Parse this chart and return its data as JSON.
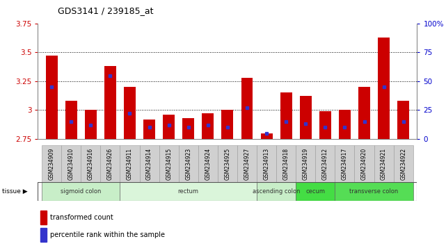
{
  "title": "GDS3141 / 239185_at",
  "samples": [
    "GSM234909",
    "GSM234910",
    "GSM234916",
    "GSM234926",
    "GSM234911",
    "GSM234914",
    "GSM234915",
    "GSM234923",
    "GSM234924",
    "GSM234925",
    "GSM234927",
    "GSM234913",
    "GSM234918",
    "GSM234919",
    "GSM234912",
    "GSM234917",
    "GSM234920",
    "GSM234921",
    "GSM234922"
  ],
  "transformed_count": [
    3.47,
    3.08,
    3.0,
    3.38,
    3.2,
    2.92,
    2.96,
    2.93,
    2.97,
    3.0,
    3.28,
    2.8,
    3.15,
    3.12,
    2.99,
    3.0,
    3.2,
    3.63,
    3.08
  ],
  "percentile_rank": [
    45,
    15,
    12,
    55,
    22,
    10,
    12,
    10,
    12,
    10,
    27,
    5,
    15,
    13,
    10,
    10,
    15,
    45,
    15
  ],
  "ymin": 2.75,
  "ymax": 3.75,
  "yticks": [
    2.75,
    3.0,
    3.25,
    3.5,
    3.75
  ],
  "ytick_labels": [
    "2.75",
    "3",
    "3.25",
    "3.5",
    "3.75"
  ],
  "y2ticks": [
    0,
    25,
    50,
    75,
    100
  ],
  "y2tick_labels": [
    "0",
    "25",
    "50",
    "75",
    "100%"
  ],
  "dotted_lines": [
    3.0,
    3.25,
    3.5
  ],
  "bar_color": "#cc0000",
  "dot_color": "#3333cc",
  "bar_width": 0.6,
  "tissue_groups": [
    {
      "label": "sigmoid colon",
      "start": 0,
      "end": 3,
      "color": "#c8eec8"
    },
    {
      "label": "rectum",
      "start": 4,
      "end": 10,
      "color": "#daf5da"
    },
    {
      "label": "ascending colon",
      "start": 11,
      "end": 12,
      "color": "#c8eec8"
    },
    {
      "label": "cecum",
      "start": 13,
      "end": 14,
      "color": "#44dd44"
    },
    {
      "label": "transverse colon",
      "start": 15,
      "end": 18,
      "color": "#55dd55"
    }
  ],
  "axis_label_color_left": "#cc0000",
  "axis_label_color_right": "#0000cc",
  "background_color": "#ffffff",
  "plot_bg_color": "#ffffff",
  "grid_color": "#000000",
  "xtick_bg_color": "#d0d0d0",
  "legend_items": [
    {
      "label": "transformed count",
      "color": "#cc0000"
    },
    {
      "label": "percentile rank within the sample",
      "color": "#3333cc"
    }
  ]
}
